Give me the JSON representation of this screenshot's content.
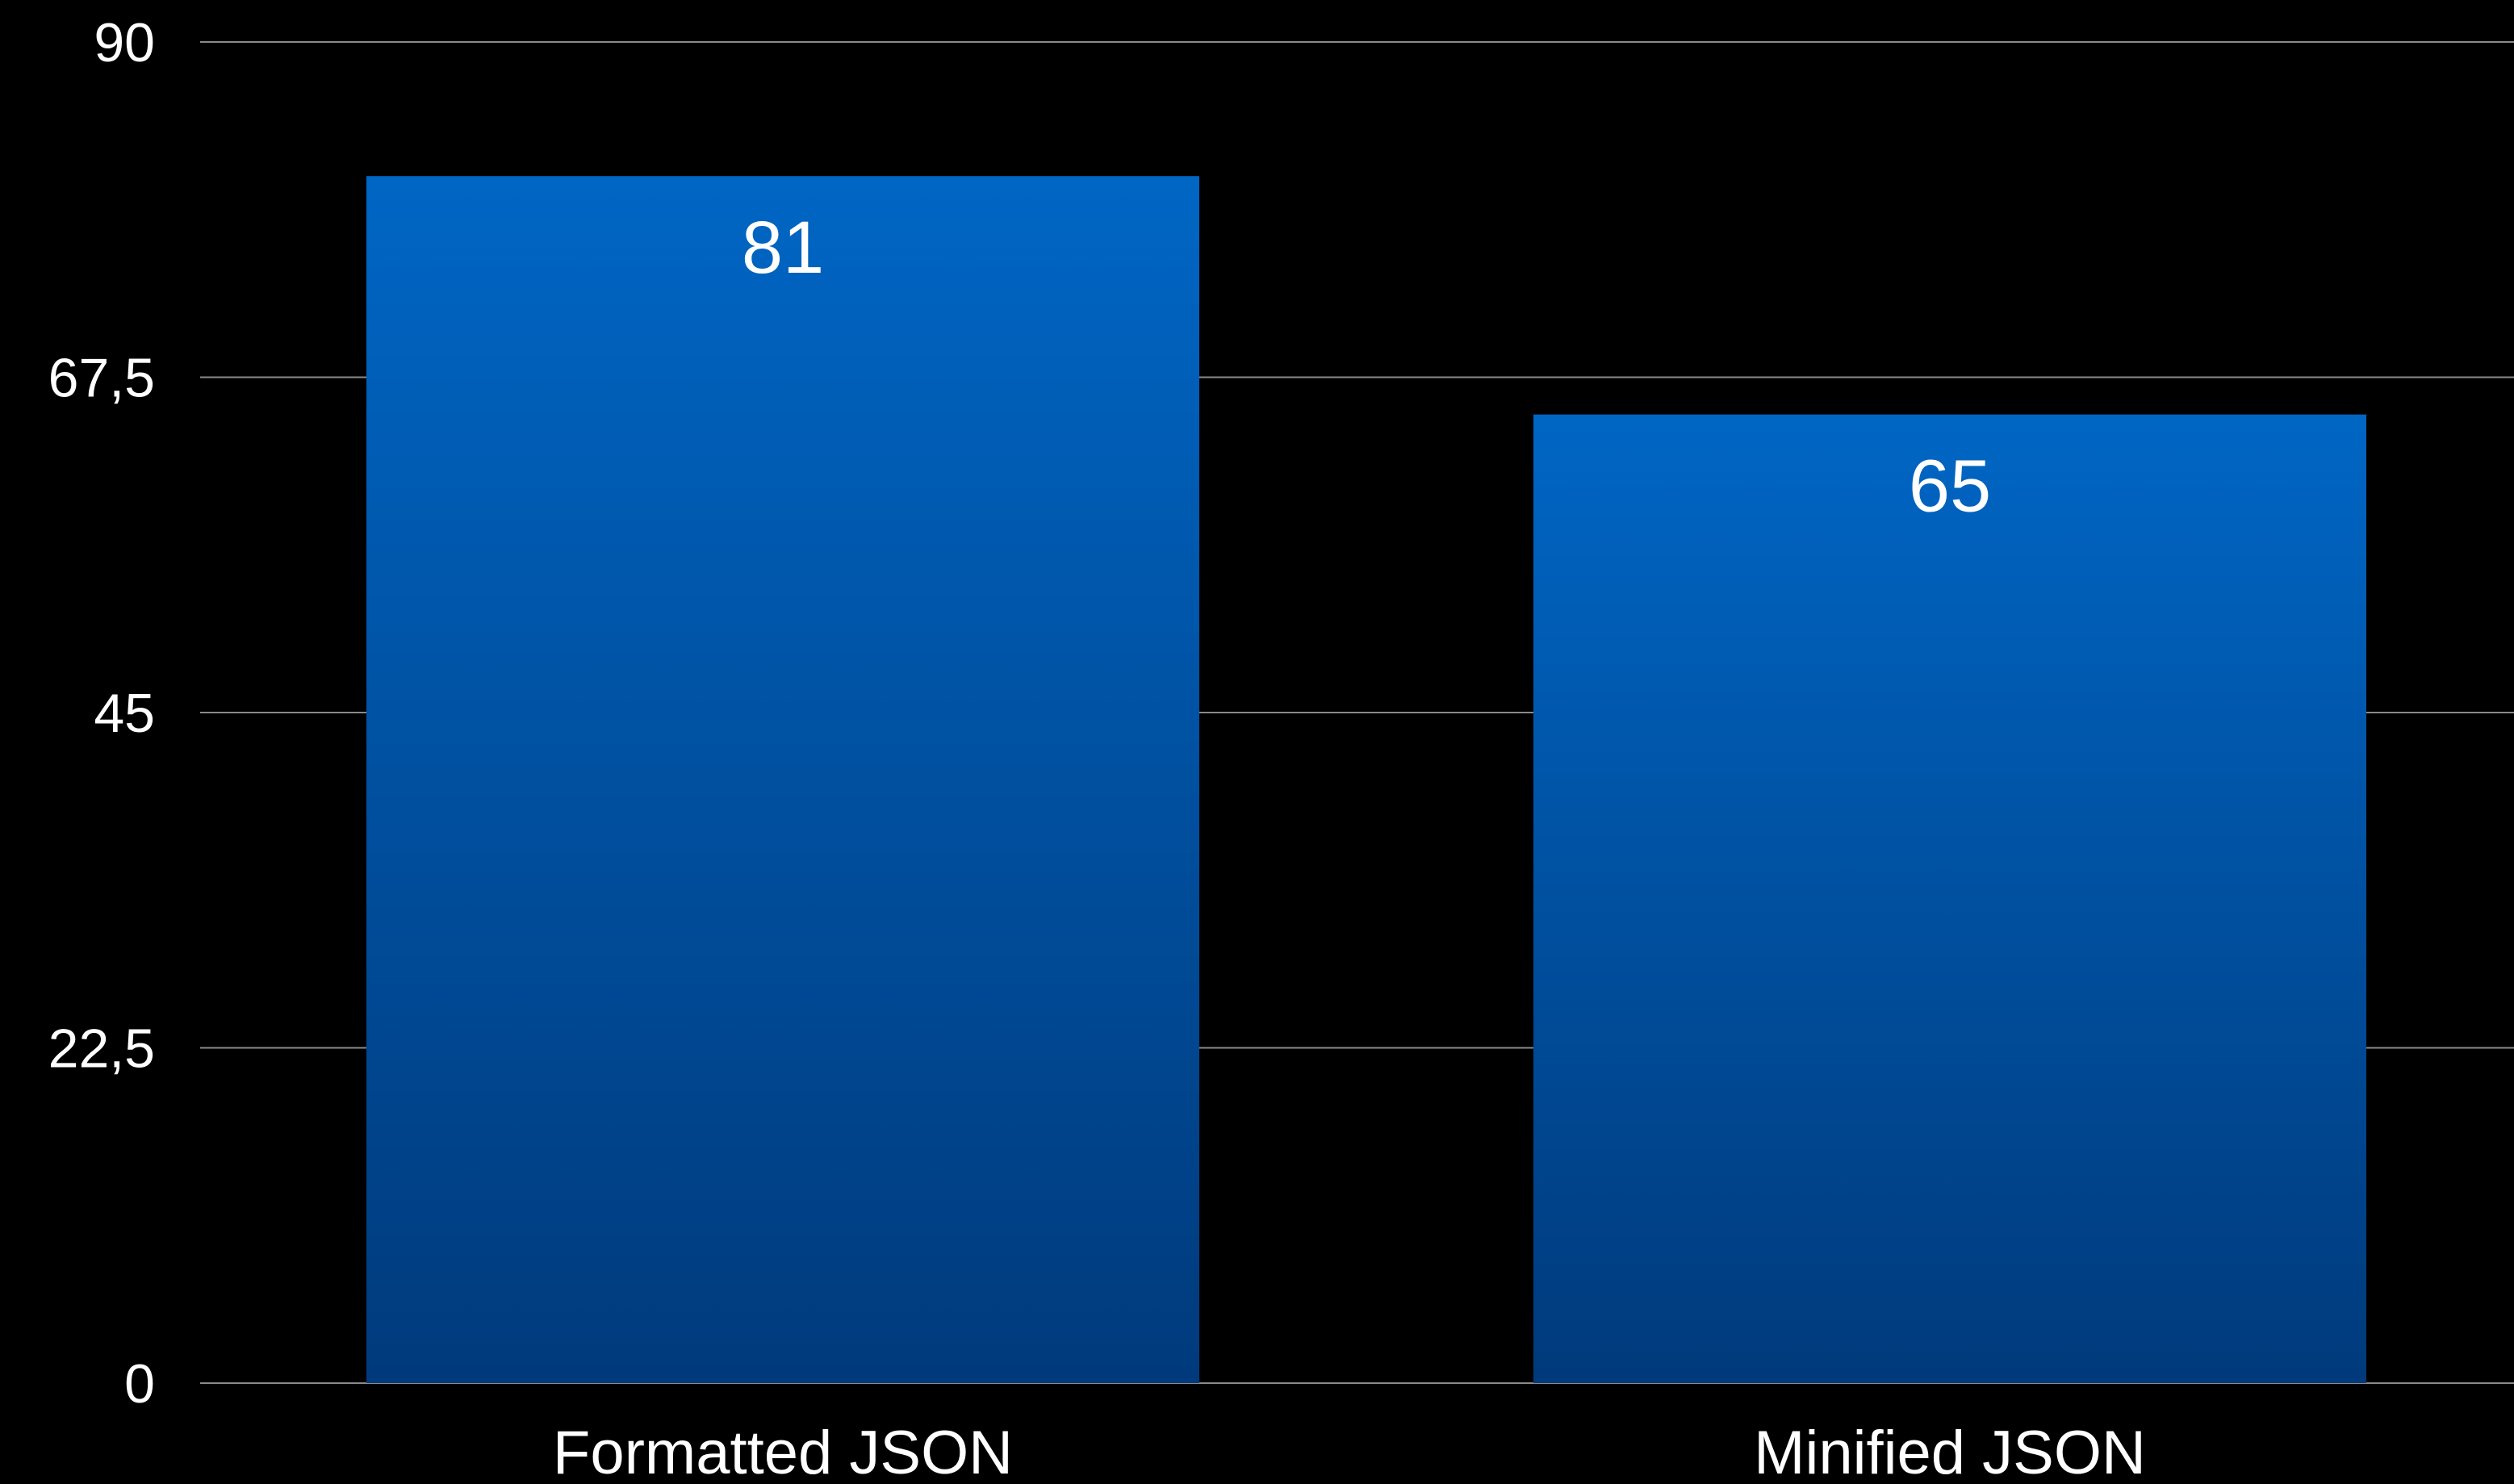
{
  "chart_data": {
    "type": "bar",
    "title": "",
    "xlabel": "",
    "ylabel": "",
    "categories": [
      "Formatted JSON",
      "Minified JSON"
    ],
    "values": [
      81,
      65
    ],
    "value_labels": [
      "81",
      "65"
    ],
    "ylim": [
      0,
      90
    ],
    "yticks": [
      0,
      22.5,
      45,
      67.5,
      90
    ],
    "ytick_labels": [
      "0",
      "22,5",
      "45",
      "67,5",
      "90"
    ],
    "grid": true,
    "legend": "none",
    "colors": {
      "background": "#000000",
      "bar_top": "#0066c4",
      "bar_bottom": "#003a7c",
      "gridline": "#8a8a8a",
      "text": "#ffffff"
    }
  }
}
